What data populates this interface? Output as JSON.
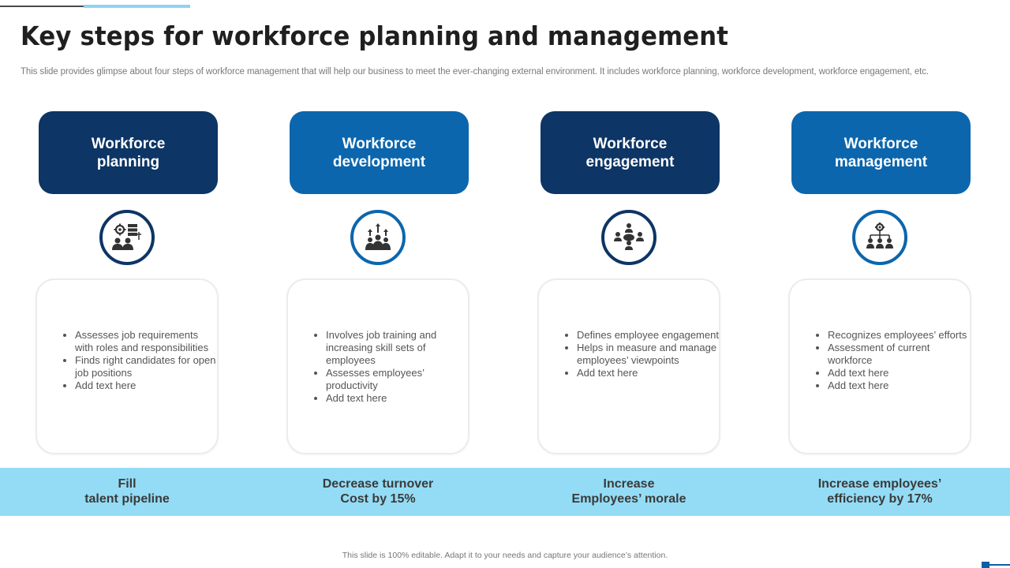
{
  "title": "Key steps for workforce planning and management",
  "subtitle": "This slide provides glimpse about four steps of workforce management that will help our business to meet the ever-changing external environment. It includes workforce planning, workforce development, workforce engagement, etc.",
  "colors": {
    "dark_navy": "#0d3565",
    "medium_blue": "#0b66ad",
    "band": "#94dcf5"
  },
  "steps": [
    {
      "heading": "Workforce\nplanning",
      "icon": "gear-people-server-icon",
      "bullets": [
        "Assesses job requirements with roles and responsibilities",
        "Finds right candidates for open job positions",
        "Add text here"
      ],
      "outcome": "Fill\ntalent pipeline"
    },
    {
      "heading": "Workforce\ndevelopment",
      "icon": "team-growth-arrows-icon",
      "bullets": [
        "Involves  job training and increasing skill sets of employees",
        "Assesses employees’ productivity",
        "Add text here"
      ],
      "outcome": "Decrease turnover\nCost by 15%"
    },
    {
      "heading": "Workforce\nengagement",
      "icon": "team-circle-icon",
      "bullets": [
        "Defines employee engagement",
        "Helps in measure and manage employees’ viewpoints",
        "Add text here"
      ],
      "outcome": "Increase\nEmployees’ morale"
    },
    {
      "heading": "Workforce\nmanagement",
      "icon": "org-hierarchy-gear-icon",
      "bullets": [
        "Recognizes employees’ efforts",
        "Assessment of current workforce",
        "Add text here",
        "Add text here"
      ],
      "outcome": "Increase employees’\nefficiency by 17%"
    }
  ],
  "footer": "This slide is 100% editable.  Adapt it to your needs and capture your audience’s attention."
}
